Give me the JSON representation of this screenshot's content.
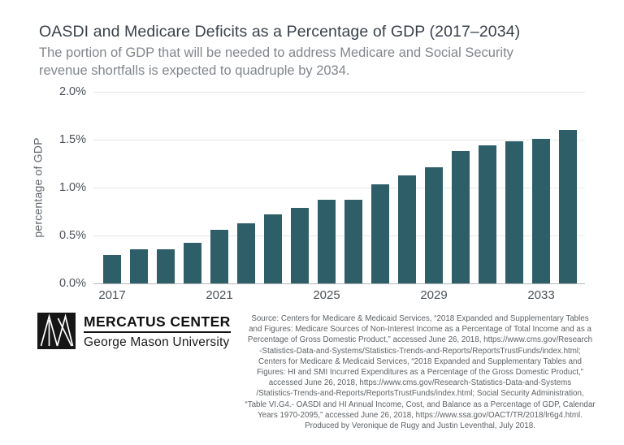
{
  "header": {
    "title": "OASDI and Medicare Deficits as a Percentage of GDP (2017–2034)",
    "subtitle_lines": [
      "The portion of GDP that will be needed to address Medicare and Social Security",
      "revenue shortfalls is expected to quadruple by 2034."
    ]
  },
  "chart_data": {
    "type": "bar",
    "title": "OASDI and Medicare Deficits as a Percentage of GDP (2017–2034)",
    "xlabel": "",
    "ylabel": "percentage of GDP",
    "ylim": [
      0,
      2.0
    ],
    "grid": true,
    "legend": false,
    "bar_color": "#2e5e68",
    "categories": [
      2017,
      2018,
      2019,
      2020,
      2021,
      2022,
      2023,
      2024,
      2025,
      2026,
      2027,
      2028,
      2029,
      2030,
      2031,
      2032,
      2033,
      2034
    ],
    "values": [
      0.3,
      0.36,
      0.36,
      0.42,
      0.56,
      0.63,
      0.72,
      0.79,
      0.87,
      0.87,
      1.03,
      1.13,
      1.21,
      1.38,
      1.44,
      1.48,
      1.51,
      1.6
    ],
    "yticks": [
      {
        "label": "2.0%",
        "value": 2.0
      },
      {
        "label": "1.5%",
        "value": 1.5
      },
      {
        "label": "1.0%",
        "value": 1.0
      },
      {
        "label": "0.5%",
        "value": 0.5
      },
      {
        "label": "0.0%",
        "value": 0.0
      }
    ],
    "xticks": [
      {
        "label": "2017",
        "index": 0
      },
      {
        "label": "2021",
        "index": 4
      },
      {
        "label": "2025",
        "index": 8
      },
      {
        "label": "2029",
        "index": 12
      },
      {
        "label": "2033",
        "index": 16
      }
    ]
  },
  "footer": {
    "logo": {
      "line1": "MERCATUS CENTER",
      "line2": "George Mason University"
    },
    "source_lines": [
      "Source: Centers for Medicare & Medicaid Services, “2018 Expanded and Supplementary Tables",
      "and Figures: Medicare Sources of Non-Interest Income as a Percentage of Total Income and as a",
      "Percentage of Gross Domestic Product,” accessed June 26, 2018, https://www.cms.gov/Research",
      "-Statistics-Data-and-Systems/Statistics-Trends-and-Reports/ReportsTrustFunds/index.html;",
      "Centers for Medicare & Medicaid Services, “2018 Expanded and Supplementary Tables and",
      "Figures: HI and SMI Incurred Expenditures as a Percentage of the Gross Domestic Product,”",
      "accessed June 26, 2018, https://www.cms.gov/Research-Statistics-Data-and-Systems",
      "/Statistics-Trends-and-Reports/ReportsTrustFunds/index.html; Social Security Administration,",
      "“Table VI.G4.- OASDI and HI Annual Income, Cost, and Balance as a Percentage of GDP, Calendar",
      "Years 1970-2095,” accessed June 26, 2018, https://www.ssa.gov/OACT/TR/2018/lr6g4.html.",
      "Produced by Veronique de Rugy and Justin Leventhal, July 2018."
    ]
  }
}
